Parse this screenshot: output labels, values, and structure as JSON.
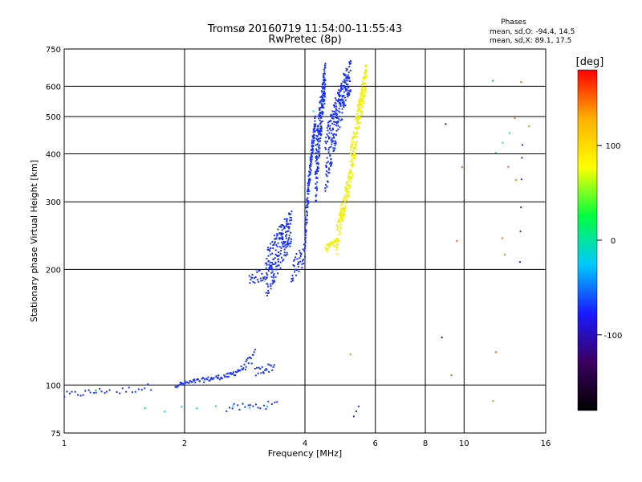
{
  "chart_data": {
    "type": "scatter",
    "title_line1": "Tromsø 20160719 11:54:00-11:55:43",
    "title_line2": "RwPretec (8p)",
    "stats_heading": "Phases",
    "stats_o": "mean, sd,O: -94.4, 14.5",
    "stats_x": "mean, sd,X:  89.1, 17.5",
    "xlabel": "Frequency [MHz]",
    "ylabel": "Stationary phase Virtual Height [km]",
    "x_scale": "log",
    "y_scale": "log",
    "xlim": [
      1,
      16
    ],
    "ylim": [
      75,
      750
    ],
    "xticks": [
      1,
      2,
      4,
      6,
      8,
      10,
      16
    ],
    "yticks": [
      75,
      100,
      200,
      300,
      400,
      500,
      600,
      750
    ],
    "grid": true,
    "colorbar": {
      "label": "[deg]",
      "range": [
        -180,
        180
      ],
      "ticks": [
        100,
        0,
        -100
      ],
      "colormap": [
        "#000000",
        "#3b0060",
        "#1a1aff",
        "#00c8ff",
        "#00ff40",
        "#ffff00",
        "#ffb000",
        "#ff0000"
      ]
    },
    "series": [
      {
        "color": "#1530ff",
        "segments": [
          {
            "f": [
              1.0,
              1.3
            ],
            "h": [
              94,
              97
            ],
            "spread": 2,
            "n": 18
          },
          {
            "f": [
              1.35,
              1.65
            ],
            "h": [
              96,
              99
            ],
            "spread": 2,
            "n": 12
          },
          {
            "f": [
              1.9,
              2.6
            ],
            "h": [
              100,
              106
            ],
            "spread": 1.5,
            "n": 60
          },
          {
            "f": [
              2.6,
              2.85
            ],
            "h": [
              106,
              112
            ],
            "spread": 2,
            "n": 20
          },
          {
            "f": [
              2.85,
              3.0
            ],
            "h": [
              112,
              120
            ],
            "spread": 4,
            "n": 12
          },
          {
            "f": [
              3.0,
              3.35
            ],
            "h": [
              108,
              112
            ],
            "spread": 3,
            "n": 20
          },
          {
            "f": [
              2.55,
              3.4
            ],
            "h": [
              87,
              89
            ],
            "spread": 2,
            "n": 20
          },
          {
            "f": [
              2.9,
              3.2
            ],
            "h": [
              190,
              195
            ],
            "spread": 8,
            "n": 25
          },
          {
            "f": [
              3.2,
              3.7
            ],
            "h": [
              195,
              260
            ],
            "spread": 30,
            "n": 200
          },
          {
            "f": [
              3.7,
              4.0
            ],
            "h": [
              200,
              220
            ],
            "spread": 15,
            "n": 40
          },
          {
            "f": [
              4.0,
              4.25
            ],
            "h": [
              240,
              490
            ],
            "spread": 25,
            "n": 140
          },
          {
            "f": [
              4.25,
              4.5
            ],
            "h": [
              350,
              640
            ],
            "spread": 70,
            "n": 200
          },
          {
            "f": [
              4.5,
              5.2
            ],
            "h": [
              380,
              650
            ],
            "spread": 70,
            "n": 260
          },
          {
            "f": [
              5.3,
              5.45
            ],
            "h": [
              82,
              86
            ],
            "spread": 2,
            "n": 3
          },
          {
            "f": [
              13.8,
              14.0
            ],
            "h": [
              205,
              430
            ],
            "spread": 10,
            "n": 6
          }
        ]
      },
      {
        "color": "#f0f000",
        "segments": [
          {
            "f": [
              4.5,
              4.8
            ],
            "h": [
              226,
              236
            ],
            "spread": 5,
            "n": 30
          },
          {
            "f": [
              4.8,
              5.2
            ],
            "h": [
              236,
              350
            ],
            "spread": 20,
            "n": 120
          },
          {
            "f": [
              5.2,
              5.7
            ],
            "h": [
              360,
              640
            ],
            "spread": 50,
            "n": 200
          }
        ]
      },
      {
        "color": "#00d8ff",
        "segments": [
          {
            "f": [
              1.6,
              3.2
            ],
            "h": [
              86,
              89
            ],
            "spread": 1.5,
            "n": 8
          },
          {
            "f": [
              4.2,
              4.4
            ],
            "h": [
              520,
              540
            ],
            "spread": 5,
            "n": 2
          },
          {
            "f": [
              12.0,
              13.0
            ],
            "h": [
              400,
              450
            ],
            "spread": 10,
            "n": 3
          }
        ]
      },
      {
        "color": "#20c020",
        "segments": [
          {
            "f": [
              1.2,
              1.25
            ],
            "h": [
              96,
              97
            ],
            "spread": 1,
            "n": 1
          },
          {
            "f": [
              11.8,
              12.0
            ],
            "h": [
              620,
              625
            ],
            "spread": 2,
            "n": 1
          }
        ]
      },
      {
        "color": "#ff6000",
        "segments": [
          {
            "f": [
              12.0,
              13.9
            ],
            "h": [
              120,
              615
            ],
            "spread": 5,
            "n": 5
          },
          {
            "f": [
              9.3,
              9.9
            ],
            "h": [
              105,
              370
            ],
            "spread": 5,
            "n": 3
          }
        ]
      },
      {
        "color": "#d09000",
        "segments": [
          {
            "f": [
              5.2,
              5.3
            ],
            "h": [
              120,
              121
            ],
            "spread": 1,
            "n": 1
          },
          {
            "f": [
              11.8,
              14.5
            ],
            "h": [
              88,
              475
            ],
            "spread": 5,
            "n": 4
          }
        ]
      },
      {
        "color": "#800000",
        "segments": [
          {
            "f": [
              8.8,
              9.0
            ],
            "h": [
              133,
              480
            ],
            "spread": 2,
            "n": 2
          }
        ]
      }
    ]
  }
}
